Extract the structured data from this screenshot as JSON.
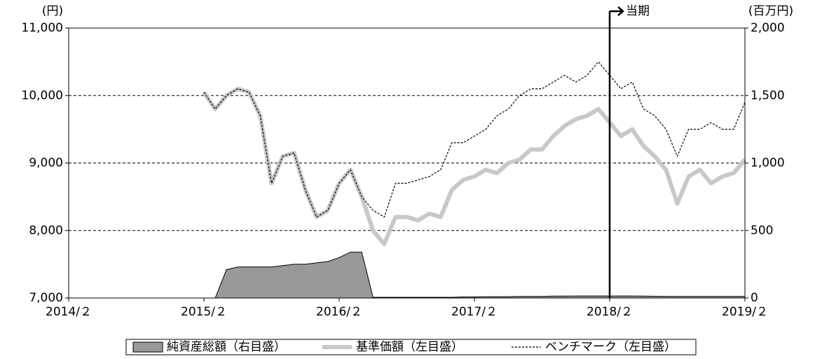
{
  "chart_data": {
    "type": "line",
    "y_unit": "(円)",
    "y2_unit": "(百万円)",
    "annotation": {
      "text": "当期",
      "x": "2018/2"
    },
    "xlim": [
      "2014/2",
      "2019/2"
    ],
    "xticks": [
      {
        "value": "2014/2",
        "label": "2014/２"
      },
      {
        "value": "2015/2",
        "label": "2015/２"
      },
      {
        "value": "2016/2",
        "label": "2016/２"
      },
      {
        "value": "2017/2",
        "label": "2017/２"
      },
      {
        "value": "2018/2",
        "label": "2018/２"
      },
      {
        "value": "2019/2",
        "label": "2019/２"
      }
    ],
    "ylim": [
      7000,
      11000
    ],
    "yticks": [
      {
        "value": 7000,
        "label": "7,000"
      },
      {
        "value": 8000,
        "label": "8,000"
      },
      {
        "value": 9000,
        "label": "9,000"
      },
      {
        "value": 10000,
        "label": "10,000"
      },
      {
        "value": 11000,
        "label": "11,000"
      }
    ],
    "y2lim": [
      0,
      2000
    ],
    "y2ticks": [
      0,
      500,
      {
        "value": 1000,
        "label": "1,000"
      },
      {
        "value": 1500,
        "label": "1,500"
      },
      {
        "value": 2000,
        "label": "2,000"
      }
    ],
    "grid": true,
    "x": [
      "2015/2",
      "2015/3",
      "2015/4",
      "2015/5",
      "2015/6",
      "2015/7",
      "2015/8",
      "2015/9",
      "2015/10",
      "2015/11",
      "2015/12",
      "2016/1",
      "2016/2",
      "2016/3",
      "2016/4",
      "2016/5",
      "2016/6",
      "2016/7",
      "2016/8",
      "2016/9",
      "2016/10",
      "2016/11",
      "2016/12",
      "2017/1",
      "2017/2",
      "2017/3",
      "2017/4",
      "2017/5",
      "2017/6",
      "2017/7",
      "2017/8",
      "2017/9",
      "2017/10",
      "2017/11",
      "2017/12",
      "2018/1",
      "2018/2",
      "2018/3",
      "2018/4",
      "2018/5",
      "2018/6",
      "2018/7",
      "2018/8",
      "2018/9",
      "2018/10",
      "2018/11",
      "2018/12",
      "2019/1",
      "2019/2"
    ],
    "series": [
      {
        "name": "純資産総額（右目盛）",
        "color": "#999999",
        "style": "area",
        "axis": "y2",
        "values": [
          0,
          0,
          210,
          230,
          230,
          230,
          230,
          240,
          250,
          250,
          260,
          270,
          300,
          340,
          340,
          5,
          5,
          5,
          5,
          5,
          5,
          5,
          5,
          8,
          8,
          10,
          10,
          10,
          12,
          12,
          12,
          14,
          14,
          15,
          15,
          15,
          15,
          15,
          15,
          14,
          13,
          12,
          12,
          12,
          12,
          12,
          12,
          12,
          12
        ]
      },
      {
        "name": "基準価額（左目盛）",
        "color": "#c8c8c8",
        "style": "thick",
        "values": [
          10050,
          9800,
          10000,
          10100,
          10050,
          9700,
          8700,
          9100,
          9150,
          8600,
          8200,
          8300,
          8700,
          8900,
          8500,
          8000,
          7800,
          8200,
          8200,
          8150,
          8250,
          8200,
          8600,
          8750,
          8800,
          8900,
          8850,
          9000,
          9050,
          9200,
          9200,
          9400,
          9550,
          9650,
          9700,
          9800,
          9600,
          9400,
          9500,
          9250,
          9100,
          8900,
          8400,
          8800,
          8900,
          8700,
          8800,
          8850,
          9050
        ]
      },
      {
        "name": "ベンチマーク（左目盛）",
        "color": "#000000",
        "style": "dashed",
        "values": [
          10050,
          9800,
          10000,
          10100,
          10050,
          9700,
          8700,
          9100,
          9150,
          8600,
          8200,
          8300,
          8700,
          8900,
          8500,
          8300,
          8200,
          8700,
          8700,
          8750,
          8800,
          8900,
          9300,
          9300,
          9400,
          9500,
          9700,
          9800,
          10000,
          10100,
          10100,
          10200,
          10300,
          10200,
          10300,
          10500,
          10300,
          10100,
          10200,
          9800,
          9700,
          9500,
          9100,
          9500,
          9500,
          9600,
          9500,
          9500,
          9900
        ]
      }
    ]
  }
}
